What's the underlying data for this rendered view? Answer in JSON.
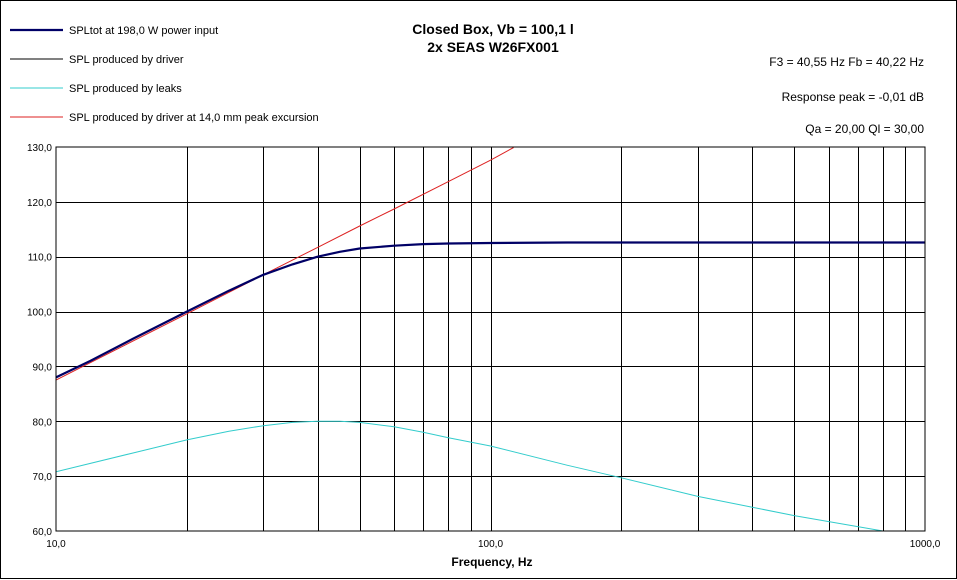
{
  "chart_data": {
    "type": "line",
    "title": [
      "Closed Box, Vb = 100,1 l",
      "2x SEAS W26FX001"
    ],
    "info": [
      "F3 = 40,55  Hz   Fb = 40,22  Hz",
      "Response peak = -0,01  dB",
      "Qa = 20,00   Ql = 30,00"
    ],
    "xlabel": "Frequency,  Hz",
    "ylabel": "",
    "xscale": "log",
    "xlim": [
      10,
      1000
    ],
    "ylim": [
      60,
      130
    ],
    "x_tick_labels": [
      {
        "value": 10,
        "label": "10,0"
      },
      {
        "value": 100,
        "label": "100,0"
      },
      {
        "value": 1000,
        "label": "1000,0"
      }
    ],
    "y_tick_labels": [
      {
        "value": 60,
        "label": "60,0"
      },
      {
        "value": 70,
        "label": "70,0"
      },
      {
        "value": 80,
        "label": "80,0"
      },
      {
        "value": 90,
        "label": "90,0"
      },
      {
        "value": 100,
        "label": "100,0"
      },
      {
        "value": 110,
        "label": "110,0"
      },
      {
        "value": 120,
        "label": "120,0"
      },
      {
        "value": 130,
        "label": "130,0"
      }
    ],
    "grid": true,
    "legend_position": "top-left",
    "series": [
      {
        "name": "SPLtot at 198,0 W power input",
        "color": "#000066",
        "width": 2.2,
        "points": [
          [
            10,
            88.0
          ],
          [
            12,
            91.0
          ],
          [
            15,
            95.0
          ],
          [
            20,
            100.0
          ],
          [
            25,
            103.8
          ],
          [
            30,
            106.7
          ],
          [
            35,
            108.6
          ],
          [
            40,
            110.0
          ],
          [
            45,
            110.9
          ],
          [
            50,
            111.5
          ],
          [
            60,
            112.0
          ],
          [
            70,
            112.3
          ],
          [
            80,
            112.4
          ],
          [
            100,
            112.5
          ],
          [
            150,
            112.6
          ],
          [
            200,
            112.6
          ],
          [
            300,
            112.6
          ],
          [
            500,
            112.6
          ],
          [
            700,
            112.6
          ],
          [
            1000,
            112.6
          ]
        ]
      },
      {
        "name": "SPL produced by driver",
        "color": "#000000",
        "width": 1,
        "points": [
          [
            10,
            88.0
          ],
          [
            12,
            91.0
          ],
          [
            15,
            95.0
          ],
          [
            20,
            100.0
          ],
          [
            25,
            103.8
          ],
          [
            30,
            106.7
          ],
          [
            35,
            108.6
          ],
          [
            40,
            110.0
          ],
          [
            45,
            110.9
          ],
          [
            50,
            111.5
          ],
          [
            60,
            112.0
          ],
          [
            70,
            112.3
          ],
          [
            80,
            112.4
          ],
          [
            100,
            112.5
          ],
          [
            150,
            112.6
          ],
          [
            200,
            112.6
          ],
          [
            300,
            112.6
          ],
          [
            500,
            112.6
          ],
          [
            700,
            112.6
          ],
          [
            1000,
            112.6
          ]
        ]
      },
      {
        "name": "SPL produced by leaks",
        "color": "#33cccc",
        "width": 1,
        "points": [
          [
            10,
            70.8
          ],
          [
            15,
            74.2
          ],
          [
            20,
            76.6
          ],
          [
            25,
            78.2
          ],
          [
            30,
            79.2
          ],
          [
            35,
            79.8
          ],
          [
            40,
            80.0
          ],
          [
            45,
            80.0
          ],
          [
            50,
            79.8
          ],
          [
            60,
            79.0
          ],
          [
            70,
            78.0
          ],
          [
            80,
            77.0
          ],
          [
            100,
            75.5
          ],
          [
            150,
            72.0
          ],
          [
            200,
            69.7
          ],
          [
            300,
            66.3
          ],
          [
            500,
            62.8
          ],
          [
            700,
            60.8
          ],
          [
            800,
            60.0
          ]
        ]
      },
      {
        "name": "SPL produced by driver at 14,0 mm peak excursion",
        "color": "#dd2222",
        "width": 1,
        "points": [
          [
            10,
            87.5
          ],
          [
            20,
            99.6
          ],
          [
            30,
            106.7
          ],
          [
            40,
            111.7
          ],
          [
            50,
            115.6
          ],
          [
            60,
            118.7
          ],
          [
            80,
            123.7
          ],
          [
            100,
            127.6
          ],
          [
            113,
            129.9
          ]
        ]
      }
    ]
  }
}
